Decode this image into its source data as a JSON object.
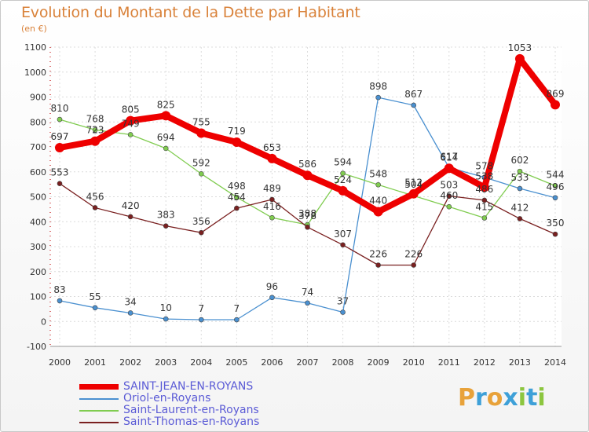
{
  "header": {
    "title": "Evolution du Montant de la Dette par Habitant",
    "subtitle": "(en €)"
  },
  "logo": {
    "letters": [
      "P",
      "r",
      "o",
      "x",
      "i",
      "t",
      "i"
    ],
    "colors": [
      "#e8a23a",
      "#3ea0d8",
      "#e8a23a",
      "#3ea0d8",
      "#8cc63f",
      "#3ea0d8",
      "#8cc63f"
    ]
  },
  "chart_data": {
    "type": "line",
    "title": "Evolution du Montant de la Dette par Habitant",
    "ylabel": "(en €)",
    "xlabel": "",
    "x": [
      "2000",
      "2001",
      "2002",
      "2003",
      "2004",
      "2005",
      "2006",
      "2007",
      "2008",
      "2009",
      "2010",
      "2011",
      "2012",
      "2013",
      "2014"
    ],
    "ylim": [
      -100,
      1100
    ],
    "yticks": [
      "-100",
      "0",
      "100",
      "200",
      "300",
      "400",
      "500",
      "600",
      "700",
      "800",
      "900",
      "1000",
      "1100"
    ],
    "grid": true,
    "legend_position": "bottom-left",
    "series": [
      {
        "name": "SAINT-JEAN-EN-ROYANS",
        "color": "#ee0000",
        "values": [
          697,
          723,
          805,
          825,
          755,
          719,
          653,
          586,
          524,
          440,
          512,
          614,
          538,
          1053,
          869
        ],
        "labels": [
          "697",
          "723",
          "805",
          "825",
          "755",
          "719",
          "653",
          "586",
          "524",
          "440",
          "512",
          "614",
          "538",
          "1053",
          "869"
        ]
      },
      {
        "name": "Oriol-en-Royans",
        "color": "#4a90d0",
        "values": [
          83,
          55,
          34,
          10,
          7,
          7,
          96,
          74,
          37,
          898,
          867,
          617,
          578,
          533,
          496
        ],
        "labels": [
          "83",
          "55",
          "34",
          "10",
          "7",
          "7",
          "96",
          "74",
          "37",
          "898",
          "867",
          "617",
          "578",
          "533",
          "496"
        ]
      },
      {
        "name": "Saint-Laurent-en-Royans",
        "color": "#80cc50",
        "values": [
          810,
          768,
          749,
          694,
          592,
          498,
          416,
          388,
          594,
          548,
          504,
          460,
          415,
          602,
          544
        ],
        "labels": [
          "810",
          "768",
          "749",
          "694",
          "592",
          "498",
          "416",
          "388",
          "594",
          "548",
          "504",
          "460",
          "415",
          "602",
          "544"
        ]
      },
      {
        "name": "Saint-Thomas-en-Royans",
        "color": "#7a2020",
        "values": [
          553,
          456,
          420,
          383,
          356,
          454,
          489,
          378,
          307,
          226,
          226,
          503,
          486,
          412,
          350
        ],
        "labels": [
          "553",
          "456",
          "420",
          "383",
          "356",
          "454",
          "489",
          "378",
          "307",
          "226",
          "226",
          "503",
          "486",
          "412",
          "350"
        ]
      }
    ]
  }
}
